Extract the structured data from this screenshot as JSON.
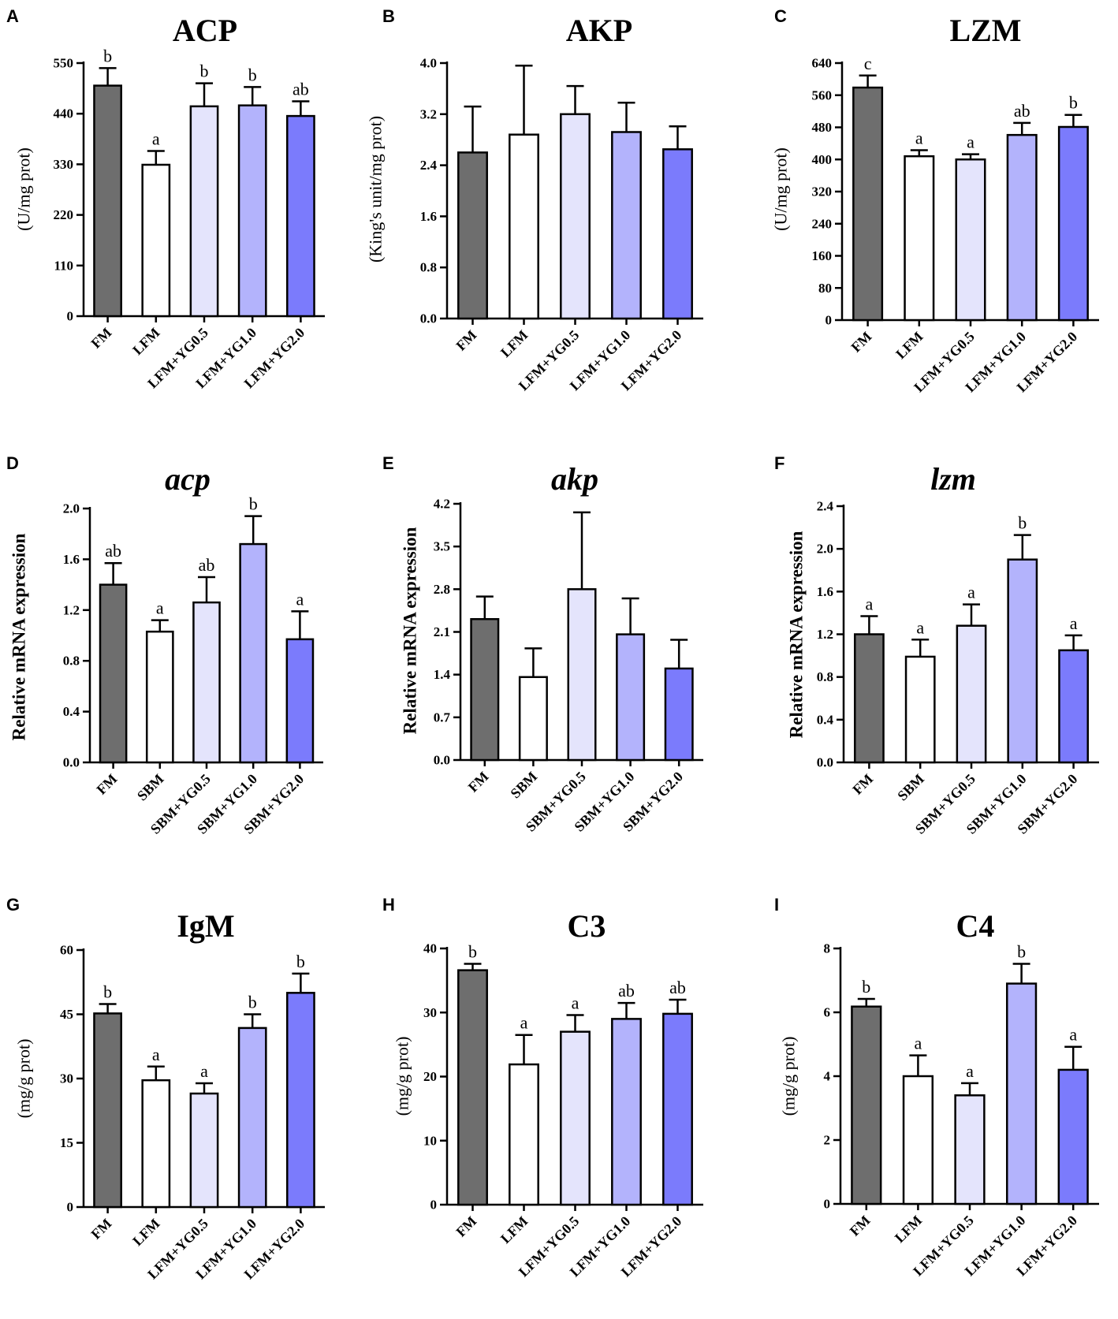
{
  "colors": {
    "FM": "#6e6e6e",
    "LFM": "#ffffff",
    "YG0.5": "#e4e4fc",
    "YG1.0": "#b3b3fc",
    "YG2.0": "#7b7bfc"
  },
  "chart_data": [
    {
      "panel": "A",
      "type": "bar",
      "title": "ACP",
      "title_italic": false,
      "ylabel": "(U/mg prot)",
      "categories": [
        "FM",
        "LFM",
        "LFM+YG0.5",
        "LFM+YG1.0",
        "LFM+YG2.0"
      ],
      "values": [
        501,
        329,
        456,
        458,
        435
      ],
      "errors": [
        38,
        30,
        50,
        40,
        32
      ],
      "significance": [
        "b",
        "a",
        "b",
        "b",
        "ab"
      ],
      "ylim": [
        0,
        550
      ],
      "yticks": [
        "0",
        "110",
        "220",
        "330",
        "440",
        "550"
      ]
    },
    {
      "panel": "B",
      "type": "bar",
      "title": "AKP",
      "title_italic": false,
      "ylabel": "(King's unit/mg prot)",
      "categories": [
        "FM",
        "LFM",
        "LFM+YG0.5",
        "LFM+YG1.0",
        "LFM+YG2.0"
      ],
      "values": [
        2.6,
        2.88,
        3.2,
        2.92,
        2.65
      ],
      "errors": [
        0.72,
        1.08,
        0.44,
        0.46,
        0.36
      ],
      "significance": [
        "",
        "",
        "",
        "",
        ""
      ],
      "ylim": [
        0,
        4.0
      ],
      "yticks": [
        "0.0",
        "0.8",
        "1.6",
        "2.4",
        "3.2",
        "4.0"
      ]
    },
    {
      "panel": "C",
      "type": "bar",
      "title": "LZM",
      "title_italic": false,
      "ylabel": "(U/mg prot)",
      "categories": [
        "FM",
        "LFM",
        "LFM+YG0.5",
        "LFM+YG1.0",
        "LFM+YG2.0"
      ],
      "values": [
        579,
        408,
        400,
        461,
        481
      ],
      "errors": [
        30,
        15,
        13,
        30,
        30
      ],
      "significance": [
        "c",
        "a",
        "a",
        "ab",
        "b"
      ],
      "ylim": [
        0,
        640
      ],
      "yticks": [
        "0",
        "80",
        "160",
        "240",
        "320",
        "400",
        "480",
        "560",
        "640"
      ]
    },
    {
      "panel": "D",
      "type": "bar",
      "title": "acp",
      "title_italic": true,
      "ylabel": "Relative mRNA expression",
      "categories": [
        "FM",
        "SBM",
        "SBM+YG0.5",
        "SBM+YG1.0",
        "SBM+YG2.0"
      ],
      "values": [
        1.4,
        1.03,
        1.26,
        1.72,
        0.97
      ],
      "errors": [
        0.17,
        0.09,
        0.2,
        0.22,
        0.22
      ],
      "significance": [
        "ab",
        "a",
        "ab",
        "b",
        "a"
      ],
      "ylim": [
        0,
        2.0
      ],
      "yticks": [
        "0.0",
        "0.4",
        "0.8",
        "1.2",
        "1.6",
        "2.0"
      ]
    },
    {
      "panel": "E",
      "type": "bar",
      "title": "akp",
      "title_italic": true,
      "ylabel": "Relative mRNA expression",
      "categories": [
        "FM",
        "SBM",
        "SBM+YG0.5",
        "SBM+YG1.0",
        "SBM+YG2.0"
      ],
      "values": [
        2.31,
        1.36,
        2.8,
        2.06,
        1.5
      ],
      "errors": [
        0.37,
        0.47,
        1.26,
        0.59,
        0.47
      ],
      "significance": [
        "",
        "",
        "",
        "",
        ""
      ],
      "ylim": [
        0,
        4.2
      ],
      "yticks": [
        "0.0",
        "0.7",
        "1.4",
        "2.1",
        "2.8",
        "3.5",
        "4.2"
      ]
    },
    {
      "panel": "F",
      "type": "bar",
      "title": "lzm",
      "title_italic": true,
      "ylabel": "Relative mRNA expression",
      "categories": [
        "FM",
        "SBM",
        "SBM+YG0.5",
        "SBM+YG1.0",
        "SBM+YG2.0"
      ],
      "values": [
        1.2,
        0.99,
        1.28,
        1.9,
        1.05
      ],
      "errors": [
        0.17,
        0.16,
        0.2,
        0.23,
        0.14
      ],
      "significance": [
        "a",
        "a",
        "a",
        "b",
        "a"
      ],
      "ylim": [
        0,
        2.4
      ],
      "yticks": [
        "0.0",
        "0.4",
        "0.8",
        "1.2",
        "1.6",
        "2.0",
        "2.4"
      ]
    },
    {
      "panel": "G",
      "type": "bar",
      "title": "IgM",
      "title_italic": false,
      "ylabel": "(mg/g prot)",
      "categories": [
        "FM",
        "LFM",
        "LFM+YG0.5",
        "LFM+YG1.0",
        "LFM+YG2.0"
      ],
      "values": [
        45.2,
        29.6,
        26.5,
        41.8,
        50.0
      ],
      "errors": [
        2.2,
        3.2,
        2.4,
        3.2,
        4.5
      ],
      "significance": [
        "b",
        "a",
        "a",
        "b",
        "b"
      ],
      "ylim": [
        0,
        60
      ],
      "yticks": [
        "0",
        "15",
        "30",
        "45",
        "60"
      ]
    },
    {
      "panel": "H",
      "type": "bar",
      "title": "C3",
      "title_italic": false,
      "ylabel": "(mg/g prot)",
      "categories": [
        "FM",
        "LFM",
        "LFM+YG0.5",
        "LFM+YG1.0",
        "LFM+YG2.0"
      ],
      "values": [
        36.6,
        21.9,
        27.0,
        29.0,
        29.8
      ],
      "errors": [
        1.0,
        4.6,
        2.6,
        2.5,
        2.2
      ],
      "significance": [
        "b",
        "a",
        "a",
        "ab",
        "ab"
      ],
      "ylim": [
        0,
        40
      ],
      "yticks": [
        "0",
        "10",
        "20",
        "30",
        "40"
      ]
    },
    {
      "panel": "I",
      "type": "bar",
      "title": "C4",
      "title_italic": false,
      "ylabel": "(mg/g prot)",
      "categories": [
        "FM",
        "LFM",
        "LFM+YG0.5",
        "LFM+YG1.0",
        "LFM+YG2.0"
      ],
      "values": [
        6.18,
        4.0,
        3.4,
        6.9,
        4.2
      ],
      "errors": [
        0.24,
        0.65,
        0.38,
        0.62,
        0.72
      ],
      "significance": [
        "b",
        "a",
        "a",
        "b",
        "a"
      ],
      "ylim": [
        0,
        8
      ],
      "yticks": [
        "0",
        "2",
        "4",
        "6",
        "8"
      ]
    }
  ]
}
